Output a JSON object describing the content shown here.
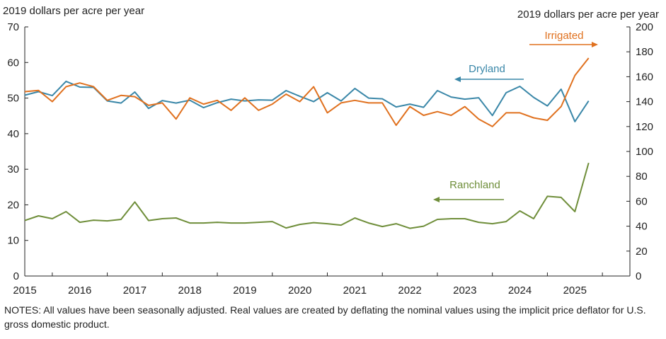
{
  "chart_data": {
    "type": "line",
    "title": "",
    "left_axis_label": "2019 dollars per acre per year",
    "right_axis_label": "2019 dollars per acre per year",
    "left_ylim": [
      0,
      70
    ],
    "left_ticks": [
      0,
      10,
      20,
      30,
      40,
      50,
      60,
      70
    ],
    "right_ylim": [
      0,
      200
    ],
    "right_ticks": [
      0,
      20,
      40,
      60,
      80,
      100,
      120,
      140,
      160,
      180,
      200
    ],
    "x_start": 2014.5,
    "x_end": 2025.5,
    "year_labels": [
      "2015",
      "2016",
      "2017",
      "2018",
      "2019",
      "2020",
      "2021",
      "2022",
      "2023",
      "2024",
      "2025"
    ],
    "quarter_x": [
      2014.5,
      2014.75,
      2015.0,
      2015.25,
      2015.5,
      2015.75,
      2016.0,
      2016.25,
      2016.5,
      2016.75,
      2017.0,
      2017.25,
      2017.5,
      2017.75,
      2018.0,
      2018.25,
      2018.5,
      2018.75,
      2019.0,
      2019.25,
      2019.5,
      2019.75,
      2020.0,
      2020.25,
      2020.5,
      2020.75,
      2021.0,
      2021.25,
      2021.5,
      2021.75,
      2022.0,
      2022.25,
      2022.5,
      2022.75,
      2023.0,
      2023.25,
      2023.5,
      2023.75,
      2024.0,
      2024.25,
      2024.5,
      2024.75
    ],
    "series": [
      {
        "name": "Dryland",
        "axis": "left",
        "color": "#3a87a8",
        "values": [
          50.8,
          51.8,
          50.7,
          54.7,
          53.1,
          53.0,
          49.2,
          48.6,
          51.7,
          47.1,
          49.3,
          48.6,
          49.4,
          47.3,
          48.7,
          49.7,
          49.2,
          49.5,
          49.4,
          52.1,
          50.5,
          49.0,
          51.5,
          49.2,
          52.7,
          50.0,
          49.8,
          47.5,
          48.3,
          47.4,
          52.1,
          50.3,
          49.7,
          50.1,
          45.1,
          51.5,
          53.3,
          50.2,
          47.8,
          52.5,
          43.4,
          49.2
        ]
      },
      {
        "name": "Irrigated",
        "axis": "right",
        "color": "#e0711f",
        "values": [
          148,
          149,
          140,
          152,
          155,
          152,
          141,
          145,
          144,
          137,
          139,
          126,
          143,
          138,
          141,
          133,
          143,
          133,
          138,
          146,
          140,
          152,
          131,
          139,
          141,
          139,
          139,
          121,
          136,
          129,
          132,
          129,
          136,
          126,
          120,
          131,
          131,
          127,
          125,
          136,
          161,
          175
        ]
      },
      {
        "name": "Ranchland",
        "axis": "left",
        "color": "#6f8e3a",
        "values": [
          15.6,
          16.9,
          16.1,
          18.1,
          15.1,
          15.7,
          15.5,
          15.9,
          20.8,
          15.6,
          16.1,
          16.3,
          14.9,
          14.9,
          15.1,
          14.9,
          14.9,
          15.1,
          15.3,
          13.5,
          14.5,
          15.0,
          14.7,
          14.3,
          16.3,
          14.9,
          13.9,
          14.7,
          13.4,
          14.0,
          15.9,
          16.1,
          16.1,
          15.1,
          14.7,
          15.3,
          18.3,
          16.1,
          22.4,
          22.1,
          18.1,
          31.8
        ]
      }
    ],
    "annotations": [
      {
        "text": "Irrigated",
        "arrow": "right"
      },
      {
        "text": "Dryland",
        "arrow": "left"
      },
      {
        "text": "Ranchland",
        "arrow": "left"
      }
    ]
  },
  "notes": "NOTES: All values have been seasonally adjusted. Real values are created by deflating the nominal values using the implicit price deflator for U.S. gross domestic product."
}
